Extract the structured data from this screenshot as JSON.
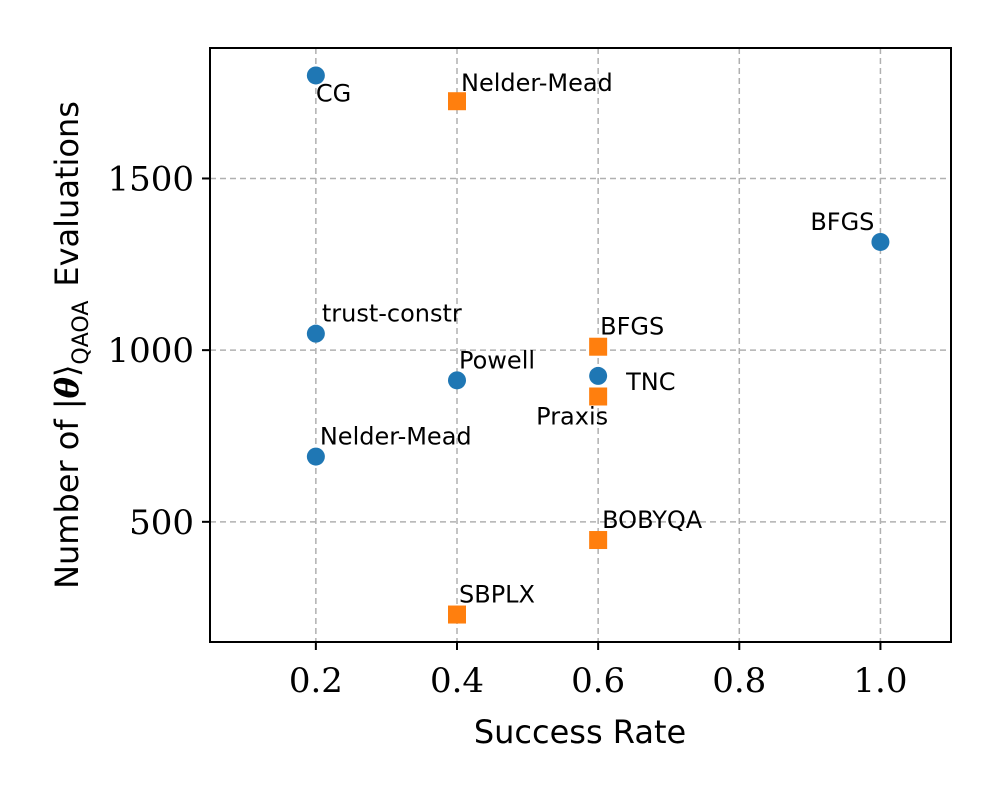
{
  "chart_data": {
    "type": "scatter",
    "xlabel": "Success Rate",
    "ylabel_prefix": "Number of |",
    "ylabel_theta": "θ",
    "ylabel_rangle": "⟩",
    "ylabel_sub": "QAOA",
    "ylabel_suffix": "Evaluations",
    "xlim": [
      0.05,
      1.1
    ],
    "ylim": [
      150,
      1880
    ],
    "xticks": [
      0.2,
      0.4,
      0.6,
      0.8,
      1.0
    ],
    "xtick_labels": [
      "0.2",
      "0.4",
      "0.6",
      "0.8",
      "1.0"
    ],
    "yticks": [
      500,
      1000,
      1500
    ],
    "ytick_labels": [
      "500",
      "1000",
      "1500"
    ],
    "grid": true,
    "series": [
      {
        "marker": "circle",
        "color": "#1f77b4",
        "points": [
          {
            "x": 0.2,
            "y": 1800,
            "label": "CG"
          },
          {
            "x": 0.2,
            "y": 1048,
            "label": "trust-constr"
          },
          {
            "x": 0.2,
            "y": 690,
            "label": "Nelder-Mead"
          },
          {
            "x": 0.4,
            "y": 912,
            "label": "Powell"
          },
          {
            "x": 0.6,
            "y": 925,
            "label": "TNC"
          },
          {
            "x": 1.0,
            "y": 1315,
            "label": "BFGS"
          }
        ]
      },
      {
        "marker": "square",
        "color": "#ff7f0e",
        "points": [
          {
            "x": 0.4,
            "y": 1725,
            "label": "Nelder-Mead"
          },
          {
            "x": 0.6,
            "y": 1010,
            "label": "BFGS"
          },
          {
            "x": 0.6,
            "y": 865,
            "label": "Praxis"
          },
          {
            "x": 0.6,
            "y": 447,
            "label": "BOBYQA"
          },
          {
            "x": 0.4,
            "y": 230,
            "label": "SBPLX"
          }
        ]
      }
    ]
  }
}
